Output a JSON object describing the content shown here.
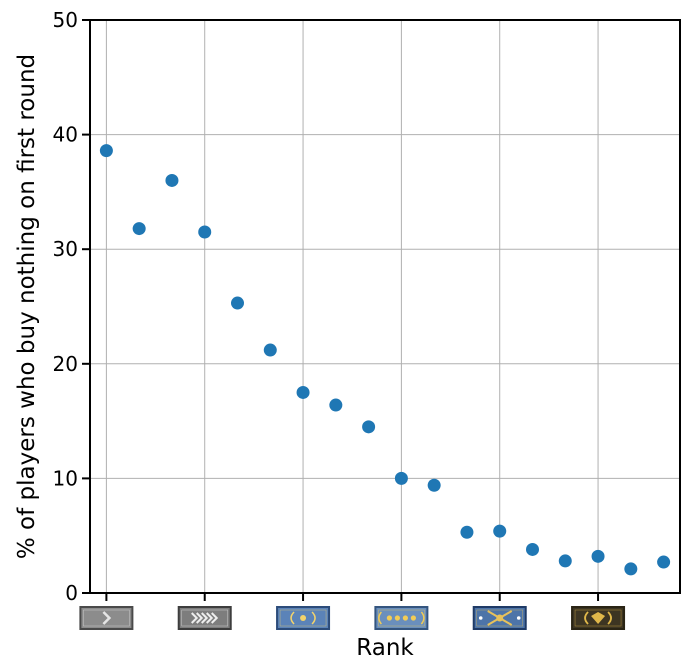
{
  "chart_data": {
    "type": "scatter",
    "title": "",
    "xlabel": "Rank",
    "ylabel": "% of players who buy nothing on first round",
    "ylim": [
      0,
      50
    ],
    "yticks": [
      0,
      10,
      20,
      30,
      40,
      50
    ],
    "xlim": [
      0.5,
      18.5
    ],
    "grid": true,
    "colors": {
      "marker": "#1f77b4",
      "grid": "#b0b0b0",
      "axis": "#000000"
    },
    "x_ticks": [
      {
        "x": 1,
        "icon": "rank-silver-1-icon",
        "frame": "#4a4a4a",
        "fill": "#8c8c8c",
        "glyph": "#e6e6e6"
      },
      {
        "x": 4,
        "icon": "rank-silver-elite-icon",
        "frame": "#3d3d3d",
        "fill": "#7d7d7d",
        "glyph": "#eeeeee"
      },
      {
        "x": 7,
        "icon": "rank-gold-nova-1-icon",
        "frame": "#2c4c7a",
        "fill": "#5b83b8",
        "glyph": "#f3d36b"
      },
      {
        "x": 10,
        "icon": "rank-gold-nova-master-icon",
        "frame": "#34557f",
        "fill": "#6a8fbd",
        "glyph": "#f2cc55"
      },
      {
        "x": 13,
        "icon": "rank-master-guardian-elite-icon",
        "frame": "#1e3a66",
        "fill": "#4d74a8",
        "glyph": "#e8c25a"
      },
      {
        "x": 16,
        "icon": "rank-legendary-eagle-icon",
        "frame": "#2a2414",
        "fill": "#3d3522",
        "glyph": "#e0b84a"
      }
    ],
    "points": [
      {
        "x": 1,
        "y": 38.6
      },
      {
        "x": 2,
        "y": 31.8
      },
      {
        "x": 3,
        "y": 36.0
      },
      {
        "x": 4,
        "y": 31.5
      },
      {
        "x": 5,
        "y": 25.3
      },
      {
        "x": 6,
        "y": 21.2
      },
      {
        "x": 7,
        "y": 17.5
      },
      {
        "x": 8,
        "y": 16.4
      },
      {
        "x": 9,
        "y": 14.5
      },
      {
        "x": 10,
        "y": 10.0
      },
      {
        "x": 11,
        "y": 9.4
      },
      {
        "x": 12,
        "y": 5.3
      },
      {
        "x": 13,
        "y": 5.4
      },
      {
        "x": 14,
        "y": 3.8
      },
      {
        "x": 15,
        "y": 2.8
      },
      {
        "x": 16,
        "y": 3.2
      },
      {
        "x": 17,
        "y": 2.1
      },
      {
        "x": 18,
        "y": 2.7
      }
    ]
  }
}
